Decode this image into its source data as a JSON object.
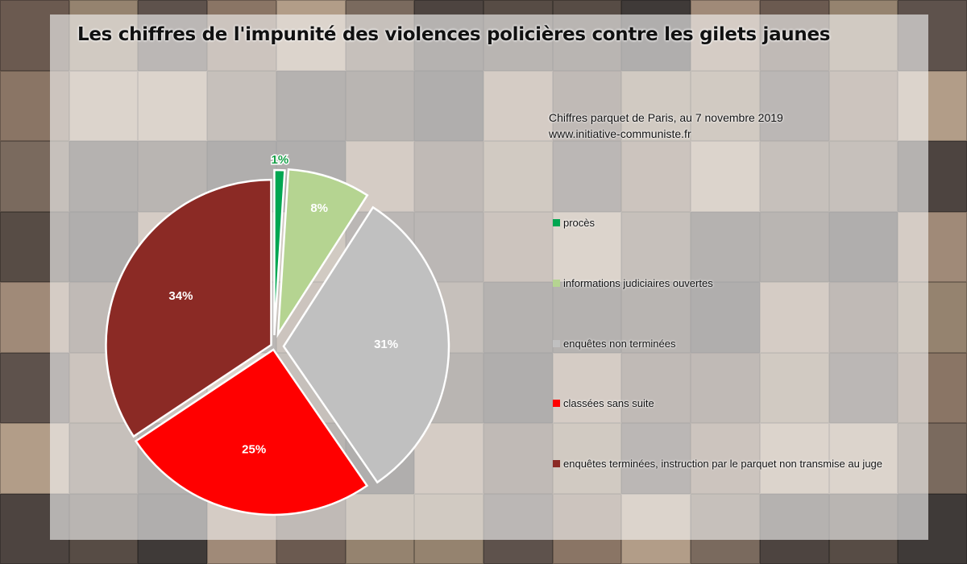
{
  "title": "Les chiffres de l'impunité des violences policières contre les gilets jaunes",
  "source": {
    "line1": "Chiffres parquet de Paris, au 7 novembre 2019",
    "line2": "www.initiative-communiste.fr"
  },
  "colors": {
    "background": "#3a3330",
    "panel": "#f5f5f5",
    "proces": "#00a651",
    "informations": "#b5d491",
    "enquetes_non_terminees": "#c0c0c0",
    "classees": "#ff0000",
    "enquetes_terminees": "#8b2a25"
  },
  "chart_data": {
    "type": "pie",
    "title": "Les chiffres de l'impunité des violences policières contre les gilets jaunes",
    "exploded": true,
    "legend_position": "right",
    "slices": [
      {
        "label": "procès",
        "value": 1,
        "display": "1%",
        "color": "#00a651"
      },
      {
        "label": "informations judiciaires ouvertes",
        "value": 8,
        "display": "8%",
        "color": "#b5d491"
      },
      {
        "label": "enquêtes non terminées",
        "value": 31,
        "display": "31%",
        "color": "#c0c0c0"
      },
      {
        "label": "classées sans suite",
        "value": 25,
        "display": "25%",
        "color": "#ff0000"
      },
      {
        "label": "enquêtes terminées, instruction par le parquet non transmise au juge",
        "value": 34,
        "display": "34%",
        "color": "#8b2a25"
      }
    ]
  }
}
